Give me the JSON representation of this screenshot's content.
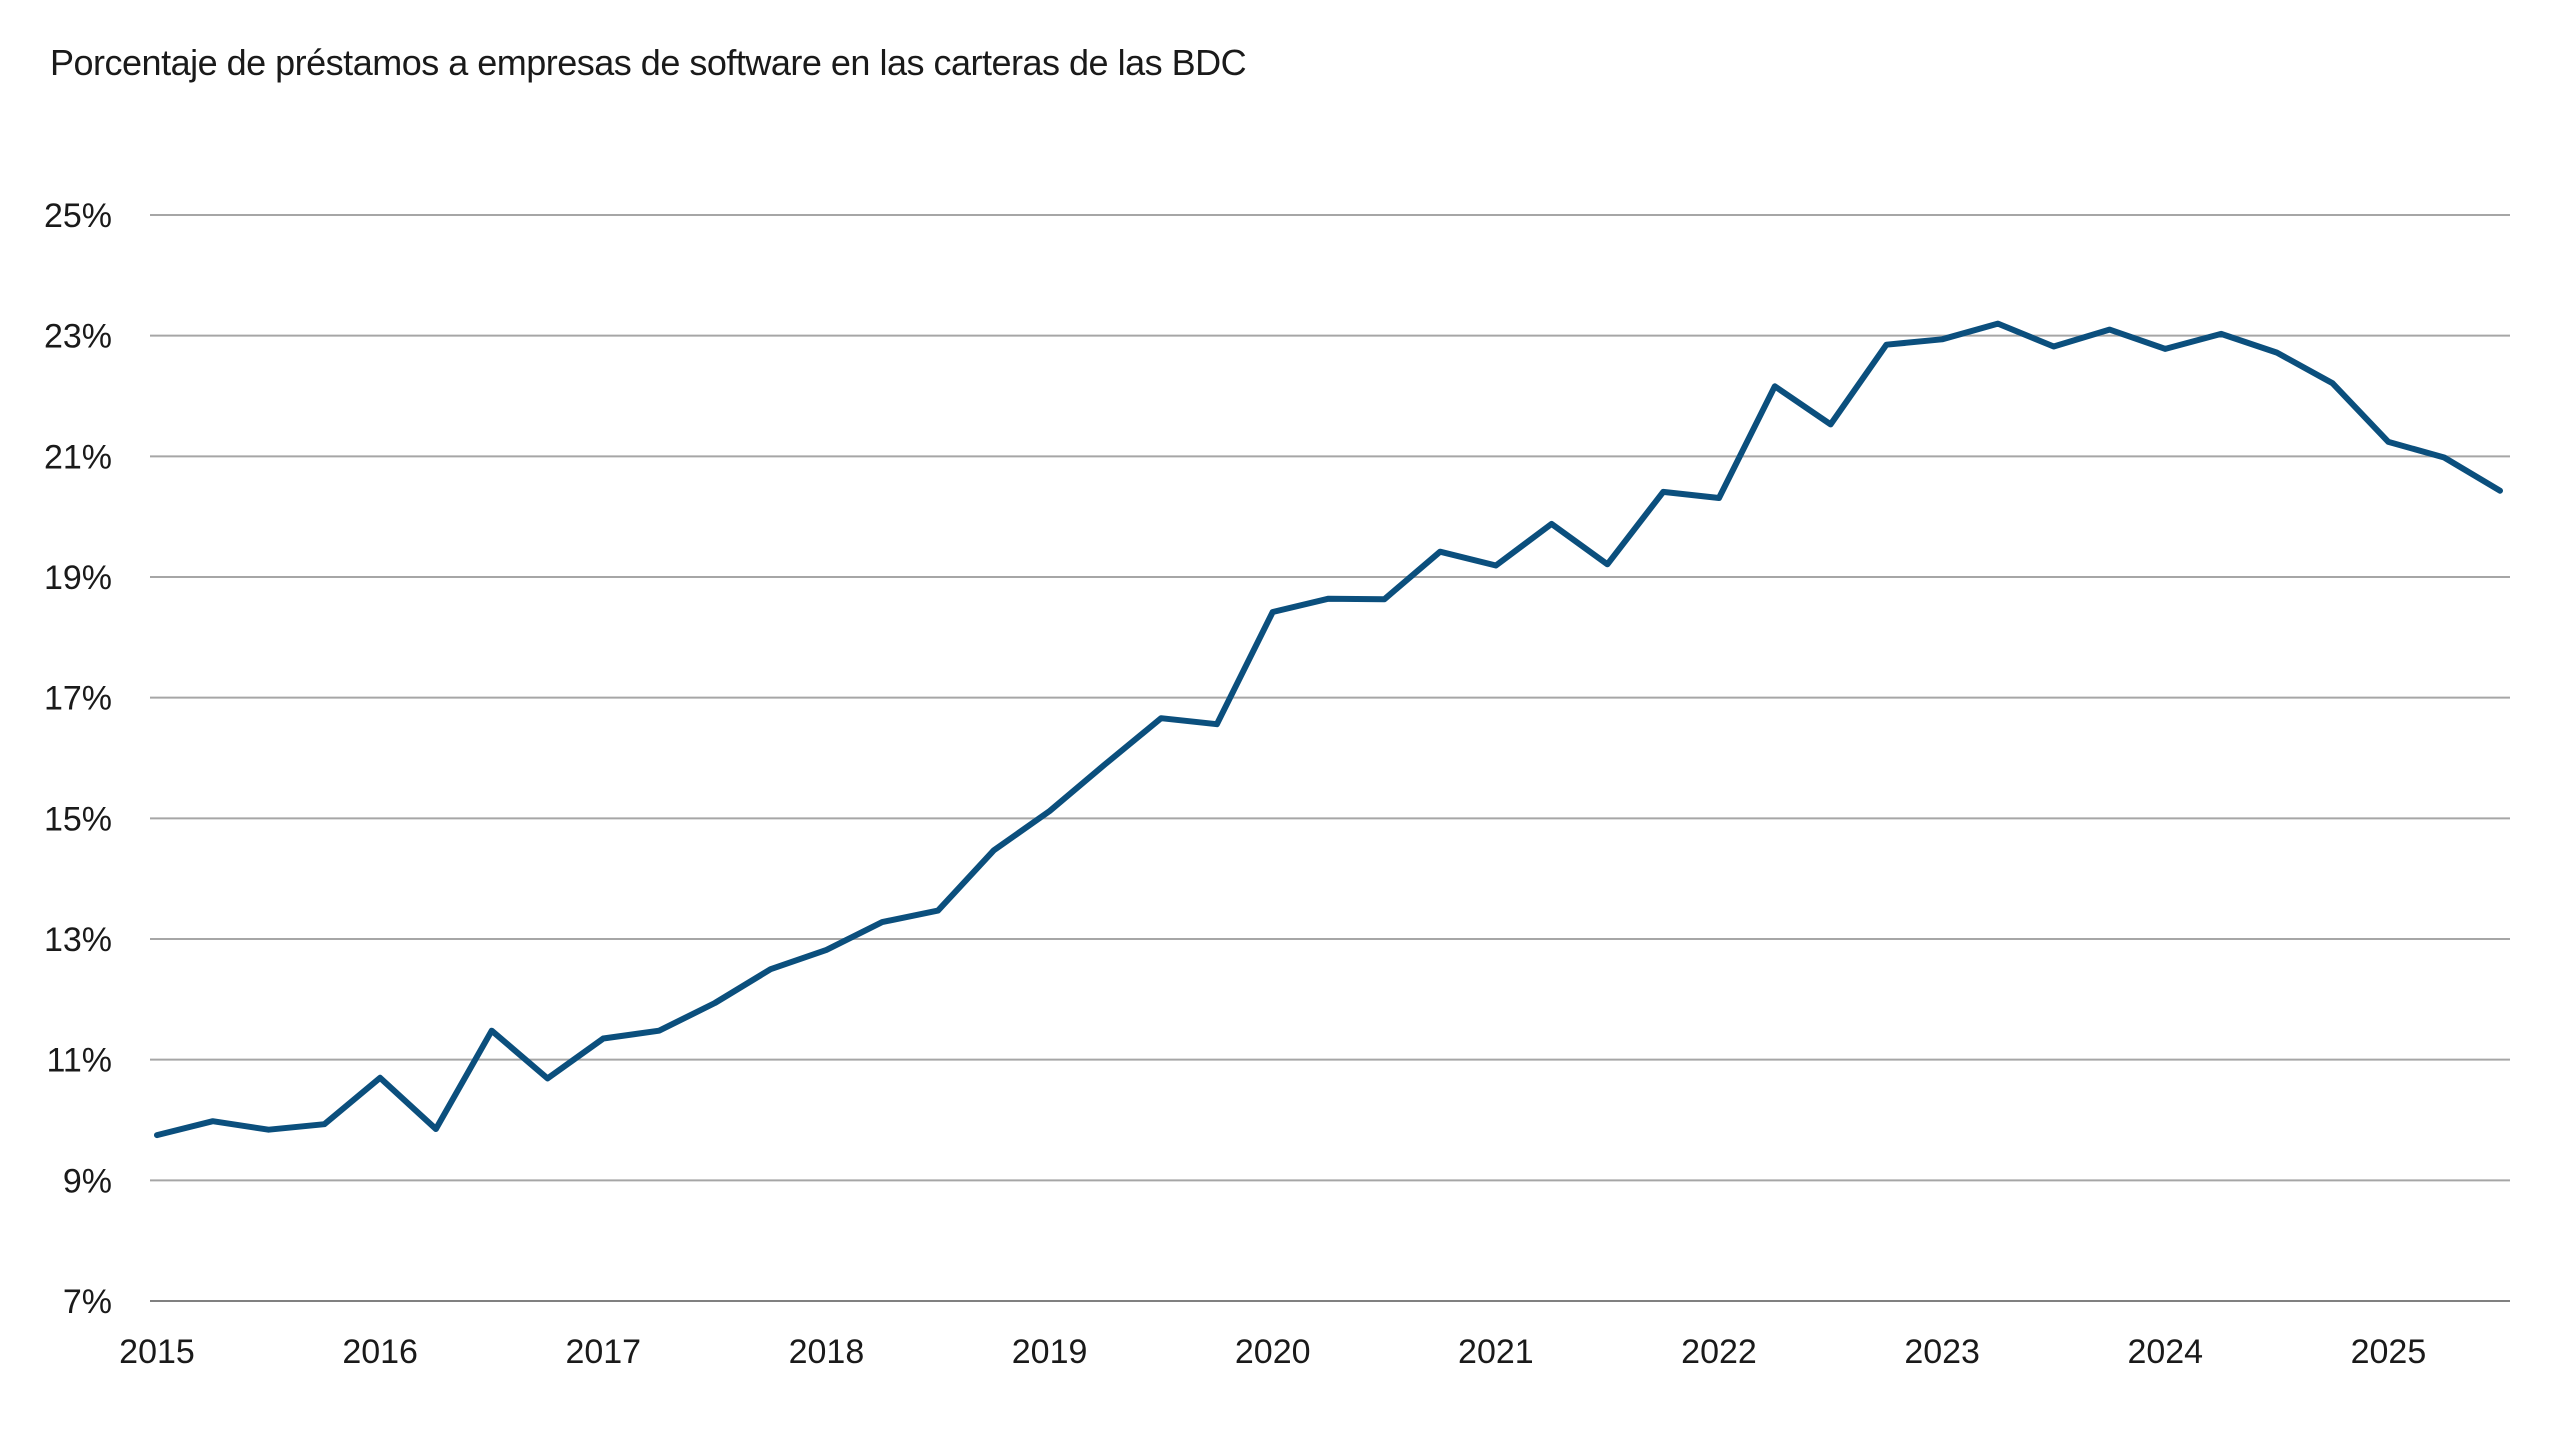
{
  "chart_data": {
    "type": "line",
    "title": "Porcentaje de préstamos a empresas de software en las carteras de las BDC",
    "xlabel": "",
    "ylabel": "",
    "ylim": [
      7,
      25
    ],
    "xlim": [
      2015.0,
      2025.5
    ],
    "y_ticks": [
      7,
      9,
      11,
      13,
      15,
      17,
      19,
      21,
      23,
      25
    ],
    "y_tick_labels": [
      "7%",
      "9%",
      "11%",
      "13%",
      "15%",
      "17%",
      "19%",
      "21%",
      "23%",
      "25%"
    ],
    "x_ticks": [
      2015,
      2016,
      2017,
      2018,
      2019,
      2020,
      2021,
      2022,
      2023,
      2024,
      2025
    ],
    "x_tick_labels": [
      "2015",
      "2016",
      "2017",
      "2018",
      "2019",
      "2020",
      "2021",
      "2022",
      "2023",
      "2024",
      "2025"
    ],
    "grid": true,
    "series": [
      {
        "color": "#0b4f7d",
        "x": [
          2015.0,
          2015.25,
          2015.5,
          2015.75,
          2016.0,
          2016.25,
          2016.5,
          2016.75,
          2017.0,
          2017.25,
          2017.5,
          2017.75,
          2018.0,
          2018.25,
          2018.5,
          2018.75,
          2019.0,
          2019.25,
          2019.5,
          2019.75,
          2020.0,
          2020.25,
          2020.5,
          2020.75,
          2021.0,
          2021.25,
          2021.5,
          2021.75,
          2022.0,
          2022.25,
          2022.5,
          2022.75,
          2023.0,
          2023.25,
          2023.5,
          2023.75,
          2024.0,
          2024.25,
          2024.5,
          2024.75,
          2025.0,
          2025.25,
          2025.5
        ],
        "values": [
          9.75,
          9.98,
          9.84,
          9.93,
          10.7,
          9.85,
          11.48,
          10.69,
          11.35,
          11.48,
          11.94,
          12.5,
          12.82,
          13.28,
          13.47,
          14.47,
          15.12,
          15.9,
          16.66,
          16.56,
          18.42,
          18.64,
          18.63,
          19.42,
          19.19,
          19.88,
          19.21,
          20.41,
          20.31,
          22.16,
          21.53,
          22.85,
          22.94,
          23.2,
          22.82,
          23.1,
          22.78,
          23.03,
          22.72,
          22.21,
          21.24,
          20.98,
          20.43
        ]
      }
    ]
  }
}
